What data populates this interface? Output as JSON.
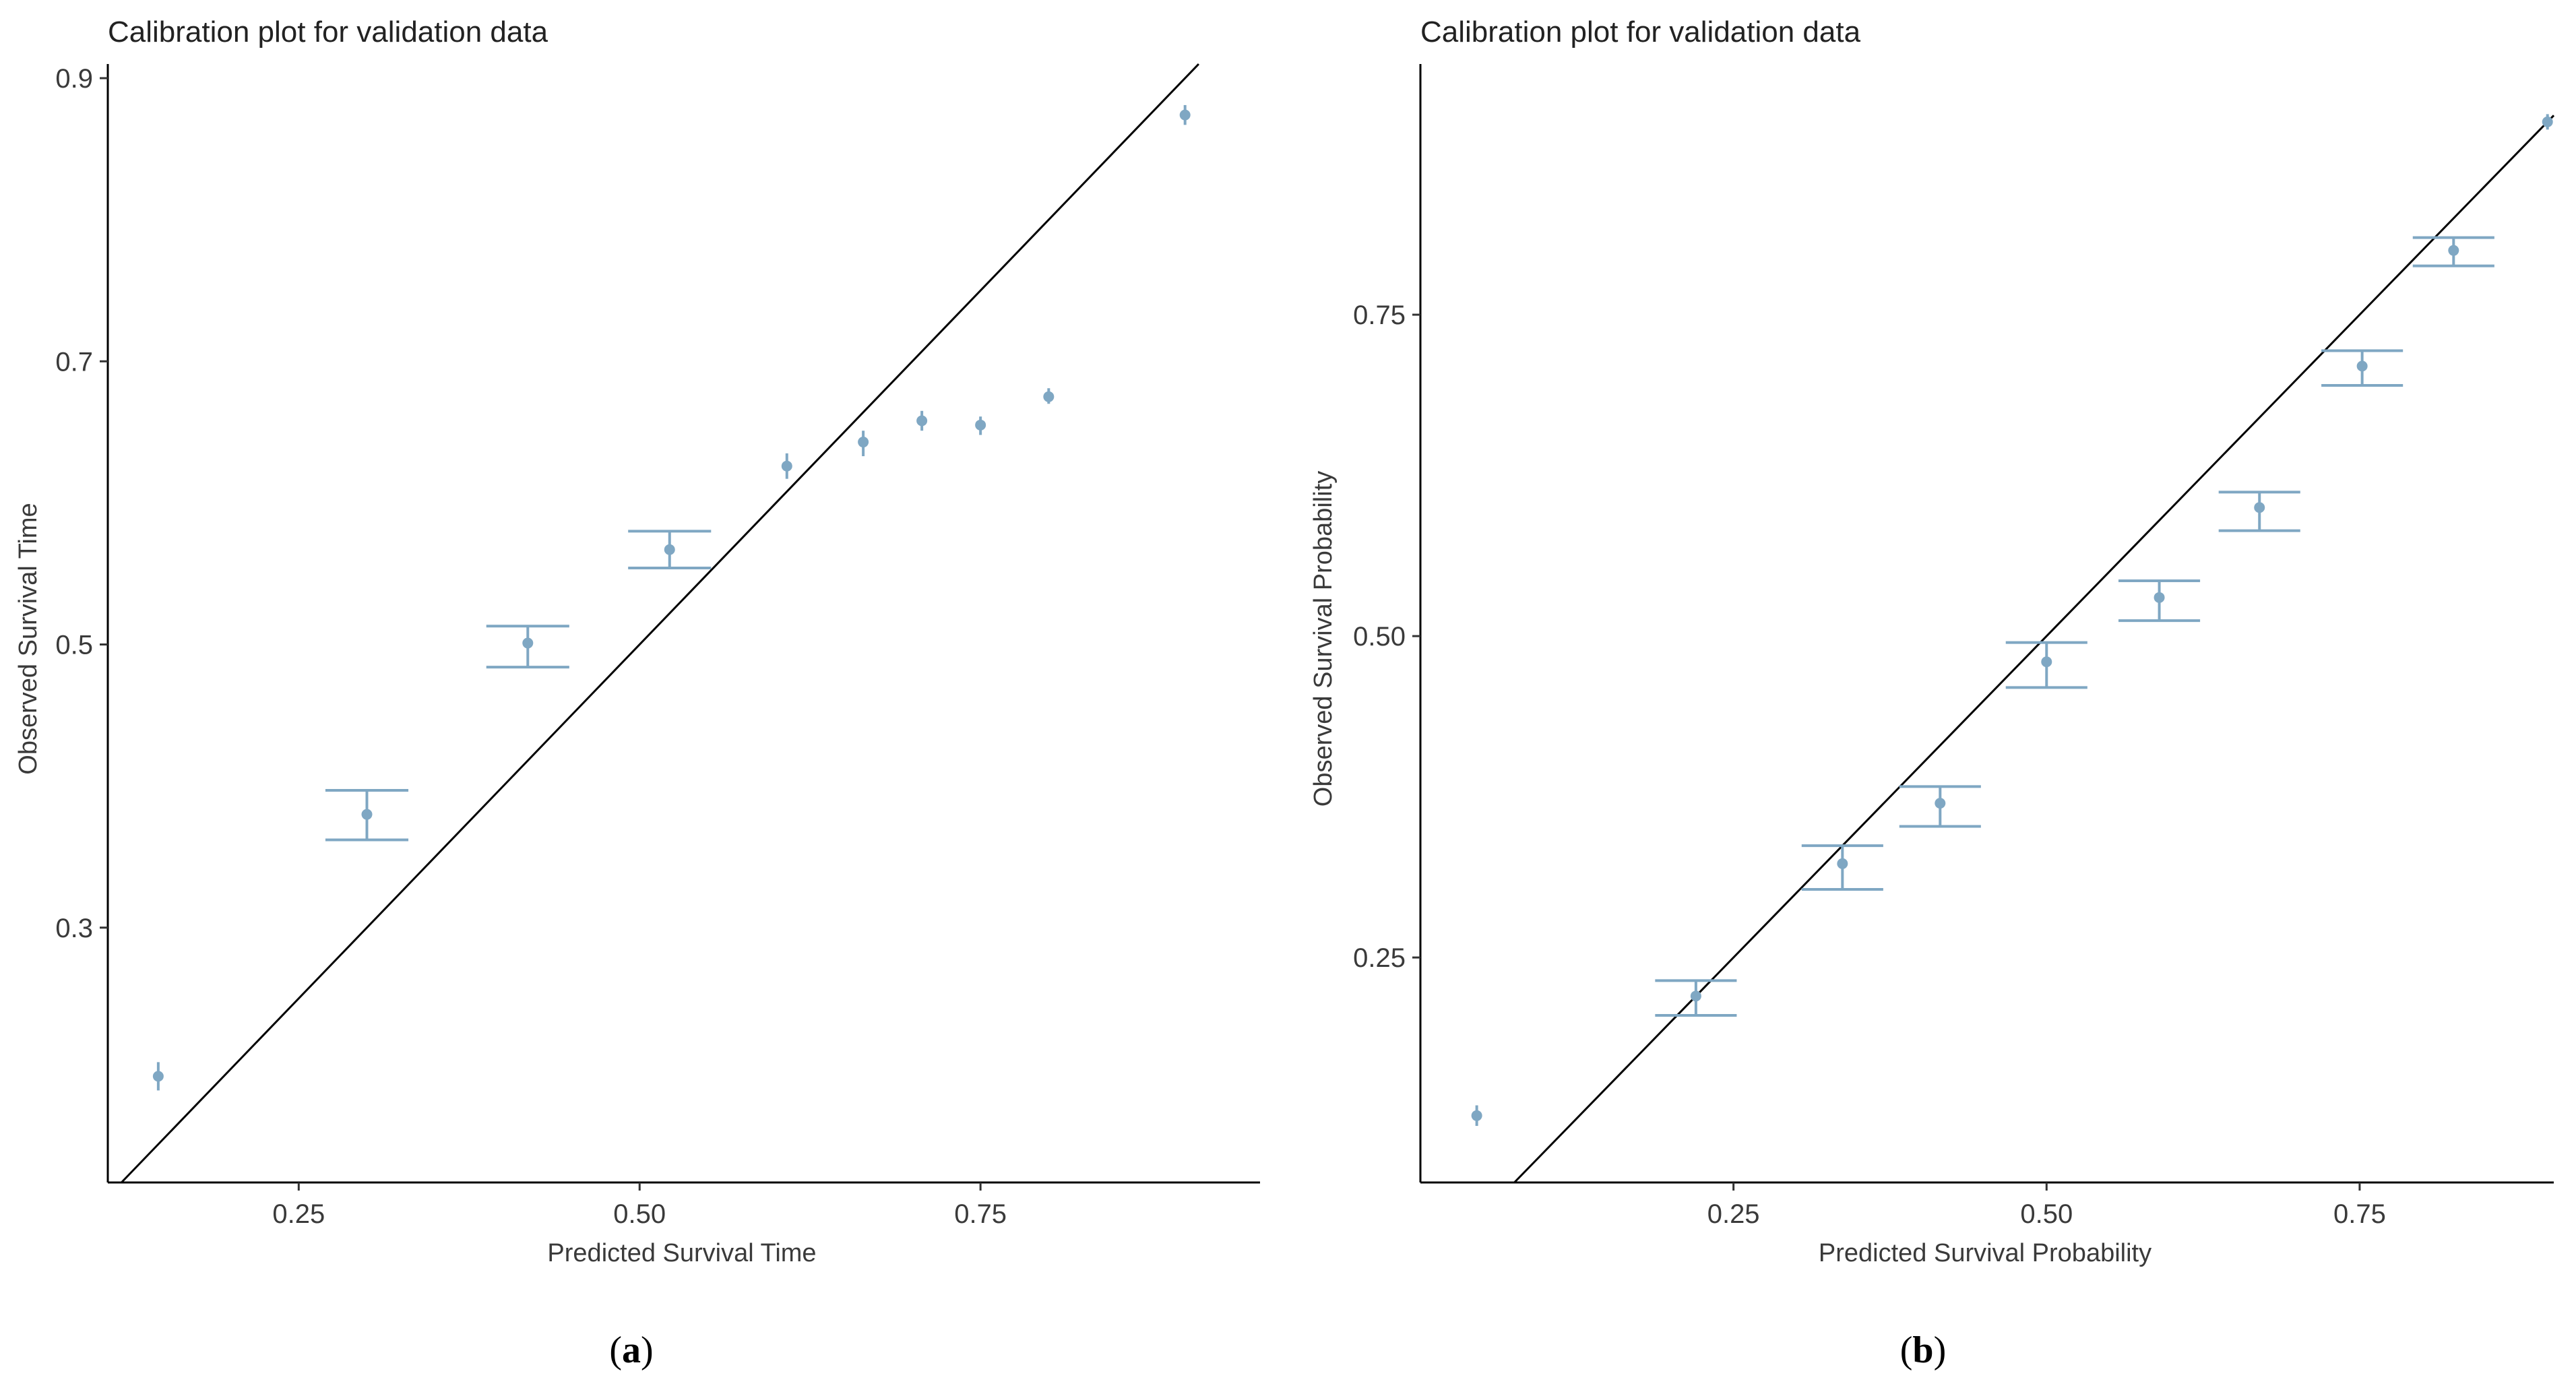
{
  "chart_data": [
    {
      "type": "scatter",
      "panel": "a",
      "title": "Calibration plot for validation data",
      "xlabel": "Predicted Survival Time",
      "ylabel": "Observed Survival Time",
      "xlim": [
        0.11,
        0.955
      ],
      "ylim": [
        0.12,
        0.91
      ],
      "xticks": [
        0.25,
        0.5,
        0.75
      ],
      "xtick_labels": [
        "0.25",
        "0.50",
        "0.75"
      ],
      "yticks": [
        0.3,
        0.5,
        0.7,
        0.9
      ],
      "ytick_labels": [
        "0.3",
        "0.5",
        "0.7",
        "0.9"
      ],
      "reference_line": "y = x",
      "grid": false,
      "points": [
        {
          "x": 0.147,
          "y": 0.195,
          "lo": 0.185,
          "hi": 0.205
        },
        {
          "x": 0.3,
          "y": 0.38,
          "lo": 0.362,
          "hi": 0.397
        },
        {
          "x": 0.418,
          "y": 0.501,
          "lo": 0.484,
          "hi": 0.513
        },
        {
          "x": 0.522,
          "y": 0.567,
          "lo": 0.554,
          "hi": 0.58
        },
        {
          "x": 0.608,
          "y": 0.626,
          "lo": 0.617,
          "hi": 0.635
        },
        {
          "x": 0.664,
          "y": 0.643,
          "lo": 0.633,
          "hi": 0.651
        },
        {
          "x": 0.707,
          "y": 0.658,
          "lo": 0.651,
          "hi": 0.665
        },
        {
          "x": 0.75,
          "y": 0.655,
          "lo": 0.648,
          "hi": 0.661
        },
        {
          "x": 0.8,
          "y": 0.675,
          "lo": 0.67,
          "hi": 0.681
        },
        {
          "x": 0.9,
          "y": 0.874,
          "lo": 0.867,
          "hi": 0.881
        }
      ]
    },
    {
      "type": "scatter",
      "panel": "b",
      "title": "Calibration plot for validation data",
      "xlabel": "Predicted Survival Probability",
      "ylabel": "Observed Survival Probability",
      "xlim": [
        0.0,
        0.905
      ],
      "ylim": [
        0.075,
        0.945
      ],
      "xticks": [
        0.25,
        0.5,
        0.75
      ],
      "xtick_labels": [
        "0.25",
        "0.50",
        "0.75"
      ],
      "yticks": [
        0.25,
        0.5,
        0.75
      ],
      "ytick_labels": [
        "0.25",
        "0.50",
        "0.75"
      ],
      "reference_line": "y = x",
      "grid": false,
      "points": [
        {
          "x": 0.045,
          "y": 0.127,
          "lo": 0.119,
          "hi": 0.135
        },
        {
          "x": 0.22,
          "y": 0.22,
          "lo": 0.205,
          "hi": 0.232
        },
        {
          "x": 0.337,
          "y": 0.323,
          "lo": 0.303,
          "hi": 0.337
        },
        {
          "x": 0.415,
          "y": 0.37,
          "lo": 0.352,
          "hi": 0.383
        },
        {
          "x": 0.5,
          "y": 0.48,
          "lo": 0.46,
          "hi": 0.495
        },
        {
          "x": 0.59,
          "y": 0.53,
          "lo": 0.512,
          "hi": 0.543
        },
        {
          "x": 0.67,
          "y": 0.6,
          "lo": 0.582,
          "hi": 0.612
        },
        {
          "x": 0.752,
          "y": 0.71,
          "lo": 0.695,
          "hi": 0.722
        },
        {
          "x": 0.825,
          "y": 0.8,
          "lo": 0.788,
          "hi": 0.81
        },
        {
          "x": 0.9,
          "y": 0.9,
          "lo": 0.894,
          "hi": 0.906
        }
      ]
    }
  ],
  "panel_labels": [
    {
      "open": "(",
      "letter": "a",
      "close": ")"
    },
    {
      "open": "(",
      "letter": "b",
      "close": ")"
    }
  ],
  "colors": {
    "point": "#7fa7c3",
    "reference_line": "#000000",
    "axis": "#000000"
  }
}
